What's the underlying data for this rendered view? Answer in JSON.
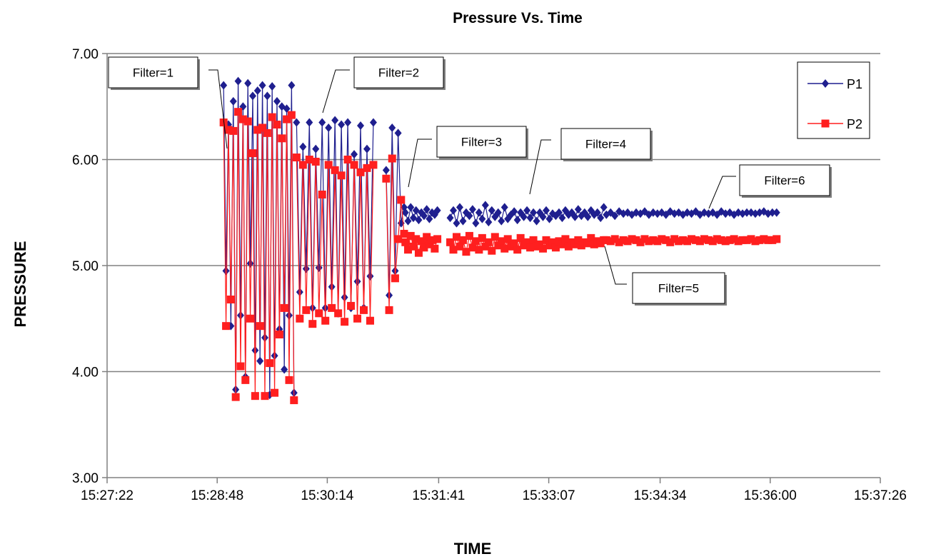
{
  "chart_data": {
    "type": "line",
    "title": "Pressure Vs. Time",
    "xlabel": "TIME",
    "ylabel": "PRESSURE",
    "xlim": [
      "15:27:22",
      "15:37:26"
    ],
    "ylim": [
      3.0,
      7.0
    ],
    "x_ticks": [
      "15:27:22",
      "15:28:48",
      "15:30:14",
      "15:31:41",
      "15:33:07",
      "15:34:34",
      "15:36:00",
      "15:37:26"
    ],
    "y_ticks": [
      "3.00",
      "4.00",
      "5.00",
      "6.00",
      "7.00"
    ],
    "grid": "horizontal",
    "legend": "top-right",
    "colors": {
      "P1": "#1F1F8F",
      "P2": "#FF1F1F",
      "grid": "#808080"
    },
    "series": [
      {
        "name": "P1",
        "marker": "diamond",
        "color": "#1F1F8F"
      },
      {
        "name": "P2",
        "marker": "square",
        "color": "#FF1F1F"
      }
    ],
    "segments": [
      {
        "start": "15:28:53",
        "end": "15:29:48",
        "p1_values": [
          6.7,
          4.95,
          6.33,
          4.43,
          6.55,
          3.83,
          6.74,
          4.53,
          6.5,
          3.95,
          6.72,
          5.02,
          6.6,
          4.2,
          6.65,
          4.1,
          6.7,
          4.32,
          6.6,
          3.78,
          6.69,
          4.15,
          6.55,
          4.4,
          6.5,
          4.02,
          6.48,
          4.53,
          6.7,
          3.8
        ],
        "p2_values": [
          6.35,
          4.43,
          6.28,
          4.68,
          6.27,
          3.76,
          6.45,
          4.05,
          6.38,
          3.92,
          6.36,
          4.5,
          6.06,
          3.77,
          6.28,
          4.43,
          6.3,
          3.77,
          6.25,
          4.08,
          6.4,
          3.8,
          6.33,
          4.35,
          6.2,
          4.6,
          6.38,
          3.92,
          6.42,
          3.73
        ]
      },
      {
        "start": "15:29:50",
        "end": "15:30:50",
        "p1_values": [
          6.35,
          4.75,
          6.12,
          4.97,
          6.35,
          4.6,
          6.1,
          4.98,
          6.35,
          4.6,
          6.3,
          4.8,
          6.37,
          4.55,
          6.33,
          4.7,
          6.35,
          4.6,
          6.05,
          4.85,
          6.32,
          4.6,
          6.1,
          4.9,
          6.35
        ],
        "p2_values": [
          6.02,
          4.5,
          5.95,
          4.58,
          6.0,
          4.45,
          5.98,
          4.55,
          5.67,
          4.48,
          5.95,
          4.6,
          5.9,
          4.55,
          5.85,
          4.47,
          6.0,
          4.62,
          5.95,
          4.5,
          5.88,
          4.58,
          5.92,
          4.48,
          5.95
        ]
      },
      {
        "start": "15:31:00",
        "end": "15:31:14",
        "p1_values": [
          5.9,
          4.72,
          6.3,
          4.95,
          6.25,
          5.4,
          5.55
        ],
        "p2_values": [
          5.82,
          4.58,
          6.01,
          4.88,
          5.25,
          5.62,
          5.3
        ]
      },
      {
        "start": "15:31:15",
        "end": "15:31:40",
        "p1_values": [
          5.5,
          5.42,
          5.55,
          5.45,
          5.52,
          5.43,
          5.5,
          5.47,
          5.53,
          5.44,
          5.5,
          5.48,
          5.52
        ],
        "p2_values": [
          5.22,
          5.15,
          5.28,
          5.18,
          5.25,
          5.12,
          5.23,
          5.17,
          5.27,
          5.2,
          5.24,
          5.16,
          5.25
        ]
      },
      {
        "start": "15:31:50",
        "end": "15:33:50",
        "p1_values": [
          5.45,
          5.52,
          5.4,
          5.55,
          5.42,
          5.5,
          5.47,
          5.53,
          5.4,
          5.5,
          5.44,
          5.57,
          5.41,
          5.52,
          5.46,
          5.5,
          5.42,
          5.55,
          5.44,
          5.48,
          5.51,
          5.43,
          5.5,
          5.46,
          5.52,
          5.45,
          5.5,
          5.42,
          5.5,
          5.46,
          5.52,
          5.44,
          5.49,
          5.47,
          5.5,
          5.45,
          5.52,
          5.48,
          5.5,
          5.46,
          5.53,
          5.47,
          5.5,
          5.46,
          5.52,
          5.48,
          5.5,
          5.45,
          5.55
        ],
        "p2_values": [
          5.22,
          5.15,
          5.27,
          5.18,
          5.24,
          5.13,
          5.28,
          5.17,
          5.23,
          5.15,
          5.26,
          5.18,
          5.22,
          5.14,
          5.27,
          5.19,
          5.23,
          5.16,
          5.25,
          5.18,
          5.21,
          5.15,
          5.26,
          5.19,
          5.22,
          5.17,
          5.24,
          5.18,
          5.2,
          5.16,
          5.24,
          5.19,
          5.22,
          5.17,
          5.23,
          5.2,
          5.25,
          5.18,
          5.22,
          5.2,
          5.24,
          5.19,
          5.22,
          5.21,
          5.26,
          5.2,
          5.23,
          5.21,
          5.24
        ]
      },
      {
        "start": "15:33:52",
        "end": "15:36:05",
        "p1_values": [
          5.48,
          5.5,
          5.47,
          5.51,
          5.49,
          5.5,
          5.48,
          5.5,
          5.49,
          5.51,
          5.48,
          5.5,
          5.49,
          5.5,
          5.48,
          5.51,
          5.49,
          5.5,
          5.48,
          5.5,
          5.49,
          5.51,
          5.48,
          5.5,
          5.49,
          5.5,
          5.48,
          5.51,
          5.49,
          5.5,
          5.48,
          5.5,
          5.49,
          5.5,
          5.5,
          5.49,
          5.5,
          5.51,
          5.49,
          5.5,
          5.5
        ],
        "p2_values": [
          5.24,
          5.23,
          5.25,
          5.22,
          5.24,
          5.23,
          5.25,
          5.24,
          5.22,
          5.25,
          5.23,
          5.24,
          5.23,
          5.25,
          5.24,
          5.22,
          5.25,
          5.23,
          5.24,
          5.23,
          5.25,
          5.24,
          5.23,
          5.25,
          5.24,
          5.23,
          5.25,
          5.24,
          5.23,
          5.24,
          5.25,
          5.23,
          5.24,
          5.24,
          5.25,
          5.23,
          5.24,
          5.25,
          5.24,
          5.24,
          5.25
        ]
      }
    ],
    "annotations": [
      {
        "label": "Filter=1"
      },
      {
        "label": "Filter=2"
      },
      {
        "label": "Filter=3"
      },
      {
        "label": "Filter=4"
      },
      {
        "label": "Filter=5"
      },
      {
        "label": "Filter=6"
      }
    ]
  }
}
